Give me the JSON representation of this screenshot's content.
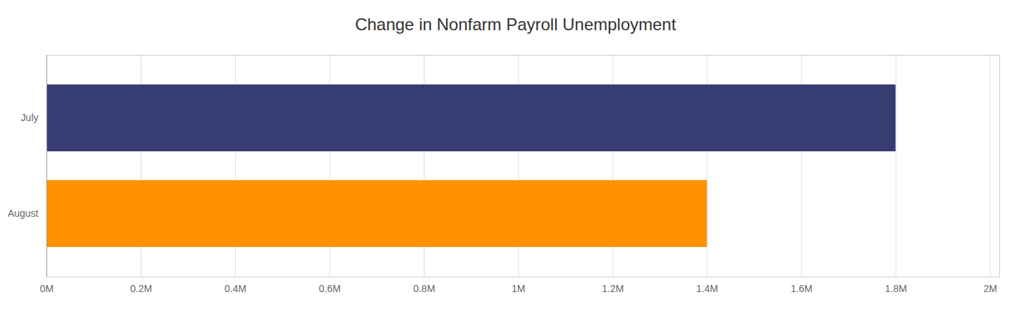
{
  "chart_data": {
    "type": "bar",
    "orientation": "horizontal",
    "title": "Change in Nonfarm Payroll Unemployment",
    "categories": [
      "July",
      "August"
    ],
    "values": [
      1800000,
      1400000
    ],
    "colors": [
      "#373c73",
      "#ff9100"
    ],
    "xlim": [
      0,
      2020000
    ],
    "xticks": [
      {
        "value": 0,
        "label": "0M"
      },
      {
        "value": 200000,
        "label": "0.2M"
      },
      {
        "value": 400000,
        "label": "0.4M"
      },
      {
        "value": 600000,
        "label": "0.6M"
      },
      {
        "value": 800000,
        "label": "0.8M"
      },
      {
        "value": 1000000,
        "label": "1M"
      },
      {
        "value": 1200000,
        "label": "1.2M"
      },
      {
        "value": 1400000,
        "label": "1.4M"
      },
      {
        "value": 1600000,
        "label": "1.6M"
      },
      {
        "value": 1800000,
        "label": "1.8M"
      },
      {
        "value": 2000000,
        "label": "2M"
      }
    ],
    "grid": true
  }
}
